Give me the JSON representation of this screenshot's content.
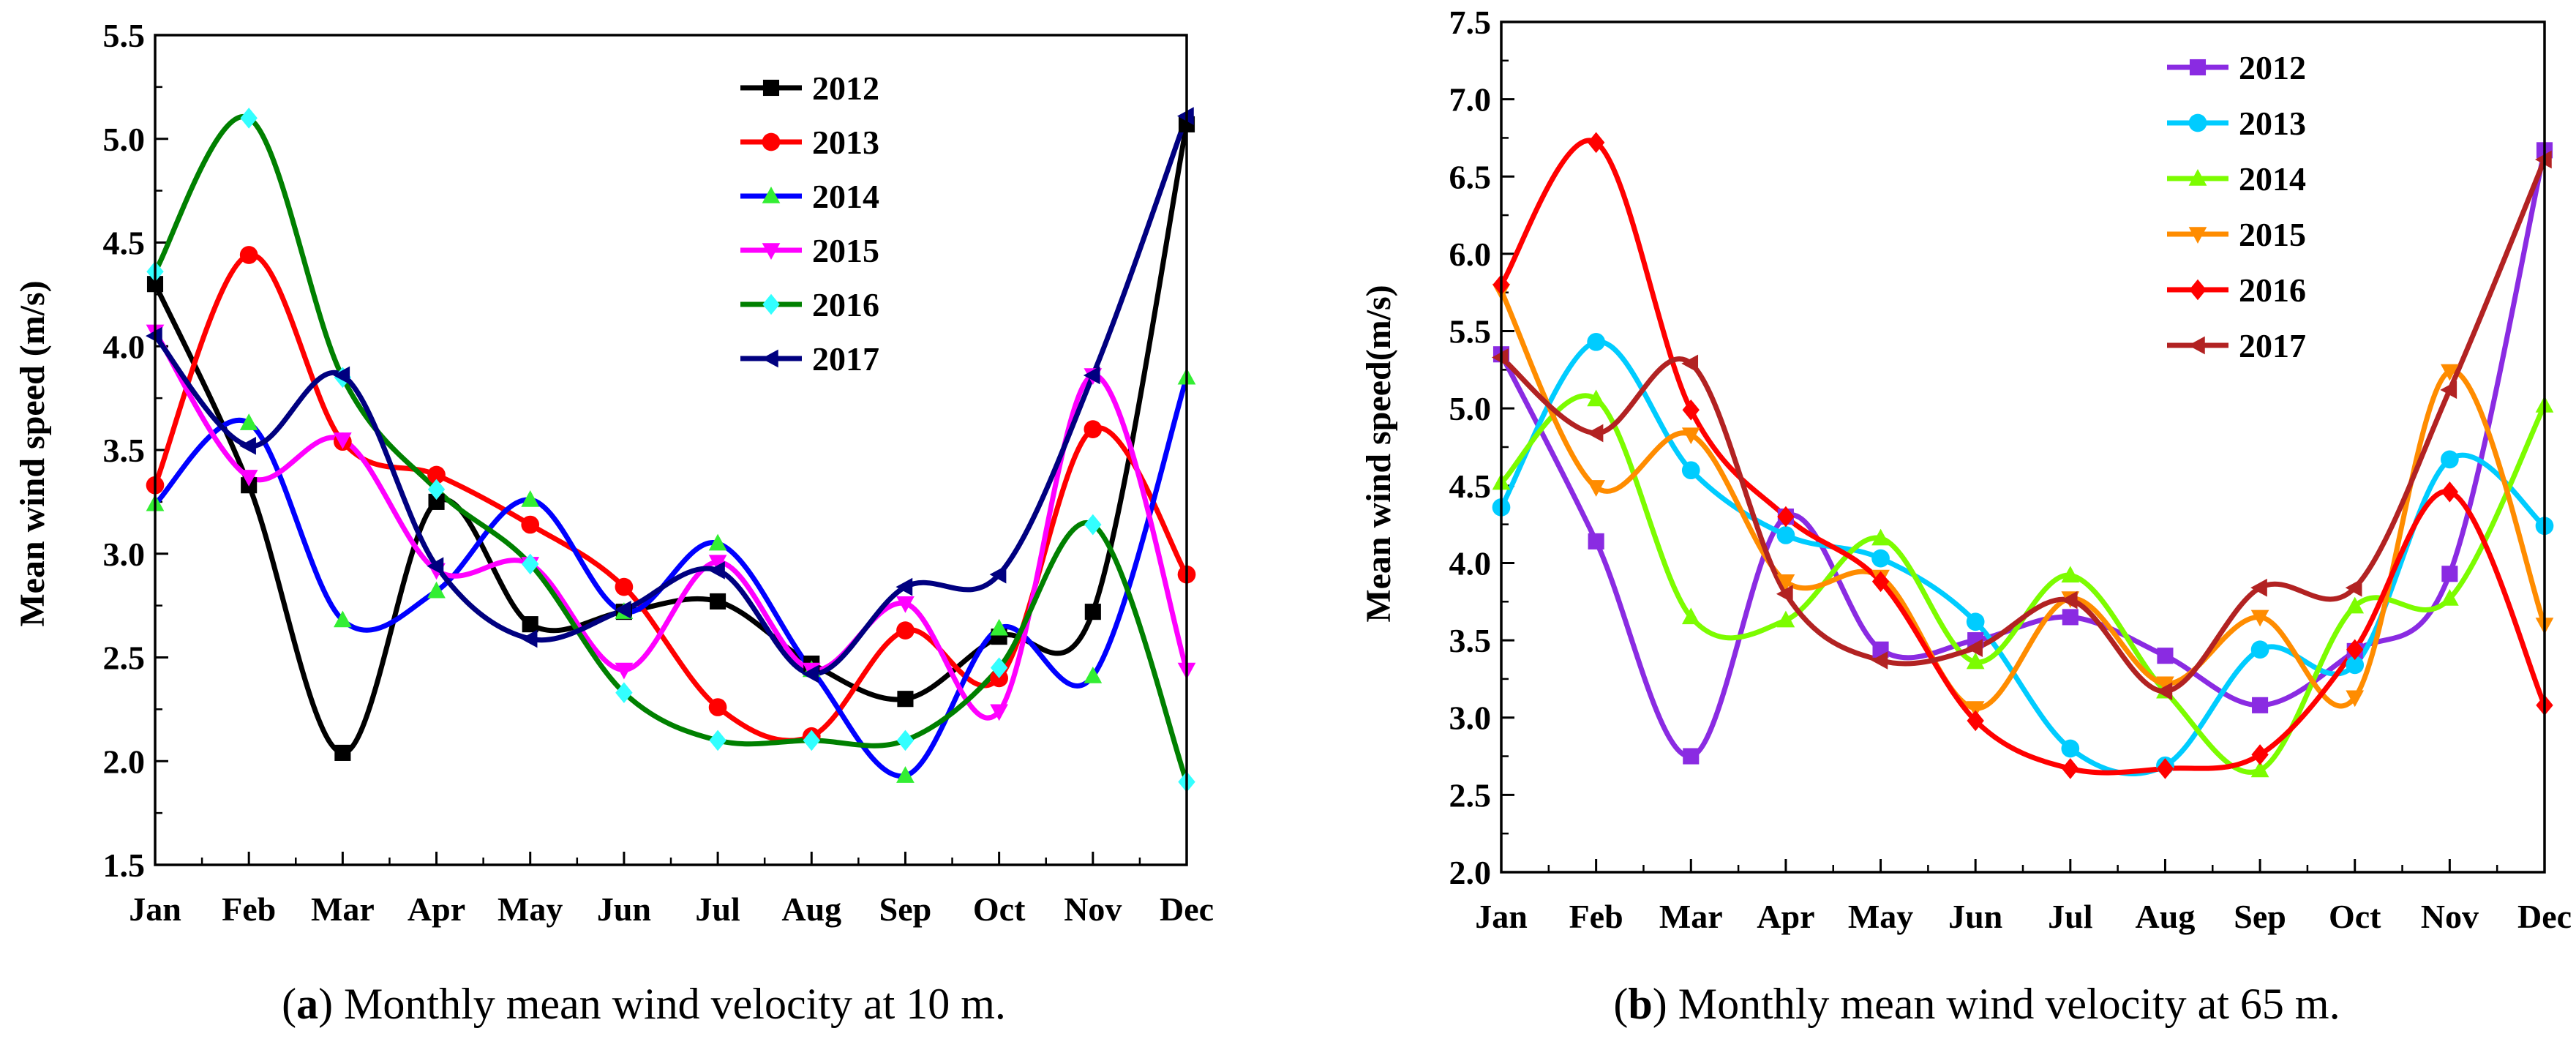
{
  "chart_data": [
    {
      "type": "line",
      "panel": "a",
      "caption_letter": "a",
      "caption_text": "Monthly mean wind velocity at 10 m.",
      "xlabel": "",
      "ylabel": "Mean wind speed (m/s)",
      "ylim": [
        1.5,
        5.5
      ],
      "yticks": [
        "1.5",
        "2.0",
        "2.5",
        "3.0",
        "3.5",
        "4.0",
        "4.5",
        "5.0",
        "5.5"
      ],
      "categories": [
        "Jan",
        "Feb",
        "Mar",
        "Apr",
        "May",
        "Jun",
        "Jul",
        "Aug",
        "Sep",
        "Oct",
        "Nov",
        "Dec"
      ],
      "legend_position": "top-right",
      "series": [
        {
          "name": "2012",
          "color": "#000000",
          "marker": "square",
          "values": [
            4.3,
            3.33,
            2.04,
            3.25,
            2.66,
            2.72,
            2.77,
            2.47,
            2.3,
            2.6,
            2.72,
            5.07
          ]
        },
        {
          "name": "2013",
          "color": "#ff0000",
          "marker": "circle",
          "values": [
            3.33,
            4.44,
            3.54,
            3.38,
            3.14,
            2.84,
            2.26,
            2.12,
            2.63,
            2.4,
            3.6,
            2.9
          ]
        },
        {
          "name": "2014",
          "color": "#0000ff",
          "marker": "triangle-up",
          "values": [
            3.24,
            3.63,
            2.68,
            2.82,
            3.26,
            2.72,
            3.05,
            2.44,
            1.93,
            2.64,
            2.41,
            3.85
          ]
        },
        {
          "name": "2015",
          "color": "#ff00ff",
          "marker": "triangle-down",
          "values": [
            4.07,
            3.37,
            3.55,
            2.92,
            2.95,
            2.44,
            2.96,
            2.44,
            2.76,
            2.24,
            3.86,
            2.44
          ]
        },
        {
          "name": "2016",
          "color": "#008000",
          "marker": "diamond",
          "values": [
            4.36,
            5.1,
            3.85,
            3.31,
            2.95,
            2.33,
            2.1,
            2.1,
            2.1,
            2.45,
            3.14,
            1.9
          ]
        },
        {
          "name": "2017",
          "color": "#000080",
          "marker": "triangle-left",
          "values": [
            4.05,
            3.52,
            3.86,
            2.94,
            2.59,
            2.73,
            2.92,
            2.42,
            2.84,
            2.9,
            3.86,
            5.11
          ]
        }
      ]
    },
    {
      "type": "line",
      "panel": "b",
      "caption_letter": "b",
      "caption_text": "Monthly mean wind velocity at 65 m.",
      "xlabel": "",
      "ylabel": "Mean wind speed(m/s)",
      "ylim": [
        2.0,
        7.5
      ],
      "yticks": [
        "2.0",
        "2.5",
        "3.0",
        "3.5",
        "4.0",
        "4.5",
        "5.0",
        "5.5",
        "6.0",
        "6.5",
        "7.0",
        "7.5"
      ],
      "categories": [
        "Jan",
        "Feb",
        "Mar",
        "Apr",
        "May",
        "Jun",
        "Jul",
        "Aug",
        "Sep",
        "Oct",
        "Nov",
        "Dec"
      ],
      "legend_position": "top-right",
      "series": [
        {
          "name": "2012",
          "color": "#8a2be2",
          "marker": "square",
          "values": [
            5.35,
            4.14,
            2.75,
            4.3,
            3.44,
            3.5,
            3.65,
            3.4,
            3.08,
            3.43,
            3.93,
            6.67
          ]
        },
        {
          "name": "2013",
          "color": "#00ccff",
          "marker": "circle",
          "values": [
            4.36,
            5.43,
            4.6,
            4.18,
            4.03,
            3.62,
            2.8,
            2.69,
            3.44,
            3.34,
            4.67,
            4.24
          ]
        },
        {
          "name": "2014",
          "color": "#7cfc00",
          "marker": "triangle-up",
          "values": [
            4.52,
            5.06,
            3.65,
            3.63,
            4.16,
            3.36,
            3.92,
            3.17,
            2.66,
            3.72,
            3.77,
            5.02
          ]
        },
        {
          "name": "2015",
          "color": "#ff8c00",
          "marker": "triangle-down",
          "values": [
            5.76,
            4.49,
            4.83,
            3.88,
            3.91,
            3.06,
            3.77,
            3.22,
            3.65,
            3.13,
            5.24,
            3.6
          ]
        },
        {
          "name": "2016",
          "color": "#ff0000",
          "marker": "diamond",
          "values": [
            5.8,
            6.72,
            4.99,
            4.3,
            3.88,
            2.98,
            2.67,
            2.67,
            2.76,
            3.44,
            4.46,
            3.08
          ]
        },
        {
          "name": "2017",
          "color": "#b22222",
          "marker": "triangle-left",
          "values": [
            5.33,
            4.84,
            5.29,
            3.8,
            3.37,
            3.45,
            3.76,
            3.17,
            3.84,
            3.84,
            5.12,
            6.61
          ]
        }
      ]
    }
  ]
}
